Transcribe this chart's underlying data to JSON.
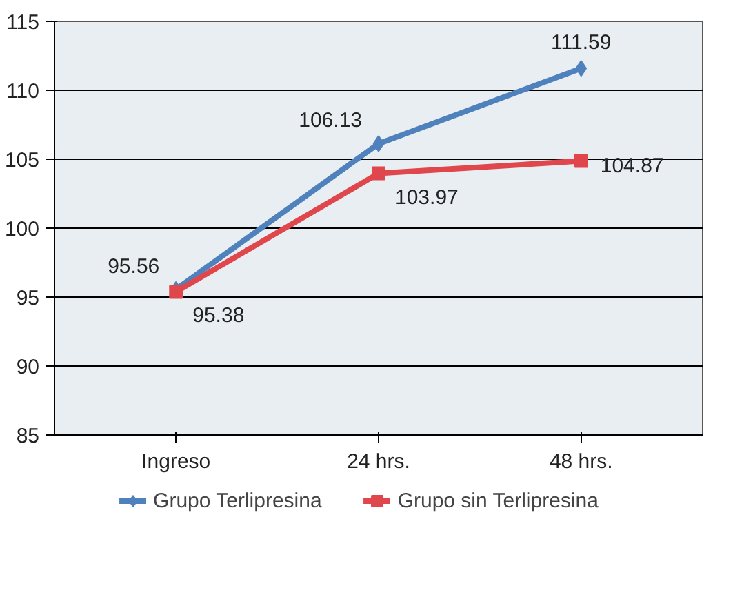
{
  "chart_data": {
    "type": "line",
    "categories": [
      "Ingreso",
      "24 hrs.",
      "48 hrs."
    ],
    "series": [
      {
        "name": "Grupo Terlipresina",
        "color": "#4f81bd",
        "values": [
          95.56,
          106.13,
          111.59
        ],
        "marker": "diamond"
      },
      {
        "name": "Grupo sin Terlipresina",
        "color": "#e0474c",
        "values": [
          95.38,
          103.97,
          104.87
        ],
        "marker": "square"
      }
    ],
    "ylim": [
      85,
      115
    ],
    "yticks": [
      85,
      90,
      95,
      100,
      105,
      110,
      115
    ],
    "grid": "y",
    "legend": "bottom",
    "data_labels": true
  }
}
